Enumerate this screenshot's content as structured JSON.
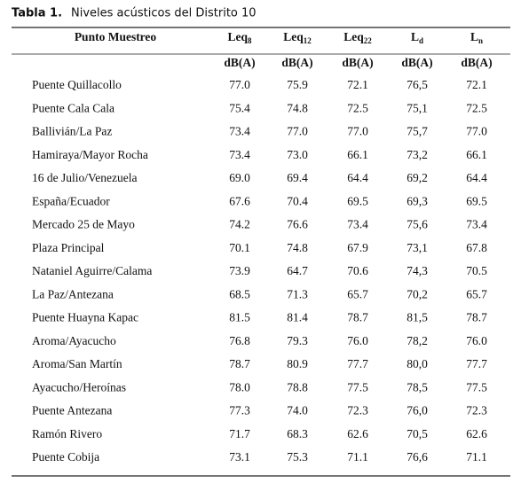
{
  "caption": {
    "label": "Tabla 1.",
    "title": "Niveles acústicos del Distrito 10"
  },
  "table": {
    "first_header": "Punto Muestreo",
    "headers": [
      {
        "base": "Leq",
        "sub": "8"
      },
      {
        "base": "Leq",
        "sub": "12"
      },
      {
        "base": "Leq",
        "sub": "22"
      },
      {
        "base": "L",
        "sub": "d"
      },
      {
        "base": "L",
        "sub": "n"
      }
    ],
    "units": [
      "dB(A)",
      "dB(A)",
      "dB(A)",
      "dB(A)",
      "dB(A)"
    ],
    "rows": [
      [
        "Puente Quillacollo",
        "77.0",
        "75.9",
        "72.1",
        "76,5",
        "72.1"
      ],
      [
        "Puente Cala Cala",
        "75.4",
        "74.8",
        "72.5",
        "75,1",
        "72.5"
      ],
      [
        "Ballivián/La Paz",
        "73.4",
        "77.0",
        "77.0",
        "75,7",
        "77.0"
      ],
      [
        "Hamiraya/Mayor Rocha",
        "73.4",
        "73.0",
        "66.1",
        "73,2",
        "66.1"
      ],
      [
        "16 de Julio/Venezuela",
        "69.0",
        "69.4",
        "64.4",
        "69,2",
        "64.4"
      ],
      [
        "España/Ecuador",
        "67.6",
        "70.4",
        "69.5",
        "69,3",
        "69.5"
      ],
      [
        "Mercado 25 de Mayo",
        "74.2",
        "76.6",
        "73.4",
        "75,6",
        "73.4"
      ],
      [
        "Plaza Principal",
        "70.1",
        "74.8",
        "67.9",
        "73,1",
        "67.8"
      ],
      [
        "Nataniel Aguirre/Calama",
        "73.9",
        "64.7",
        "70.6",
        "74,3",
        "70.5"
      ],
      [
        "La Paz/Antezana",
        "68.5",
        "71.3",
        "65.7",
        "70,2",
        "65.7"
      ],
      [
        "Puente Huayna Kapac",
        "81.5",
        "81.4",
        "78.7",
        "81,5",
        "78.7"
      ],
      [
        "Aroma/Ayacucho",
        "76.8",
        "79.3",
        "76.0",
        "78,2",
        "76.0"
      ],
      [
        "Aroma/San Martín",
        "78.7",
        "80.9",
        "77.7",
        "80,0",
        "77.7"
      ],
      [
        "Ayacucho/Heroínas",
        "78.0",
        "78.8",
        "77.5",
        "78,5",
        "77.5"
      ],
      [
        "Puente Antezana",
        "77.3",
        "74.0",
        "72.3",
        "76,0",
        "72.3"
      ],
      [
        "Ramón Rivero",
        "71.7",
        "68.3",
        "62.6",
        "70,5",
        "62.6"
      ],
      [
        "Puente Cobija",
        "73.1",
        "75.3",
        "71.1",
        "76,6",
        "71.1"
      ]
    ]
  }
}
